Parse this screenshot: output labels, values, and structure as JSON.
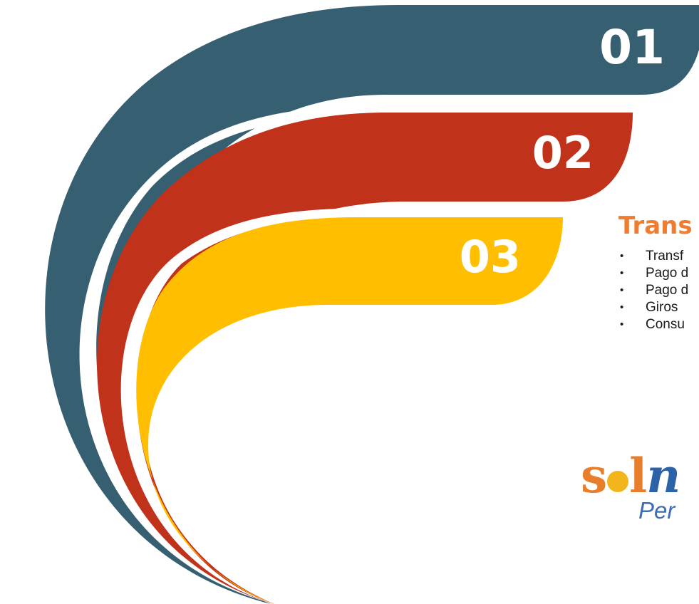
{
  "steps": [
    {
      "number": "01",
      "color": "#365f71"
    },
    {
      "number": "02",
      "color": "#c0321a"
    },
    {
      "number": "03",
      "color": "#ffbf00"
    }
  ],
  "section": {
    "title": "Trans",
    "title_color": "#ee7d31",
    "items": [
      "Transf",
      "Pago d",
      "Pago d",
      "Giros",
      "Consu"
    ]
  },
  "logo": {
    "text_s": "s",
    "text_l": "l",
    "text_n": "n",
    "sub": "Per",
    "colors": {
      "orange": "#e87e2c",
      "sun": "#f2b51c",
      "blue": "#2c62a8"
    }
  }
}
